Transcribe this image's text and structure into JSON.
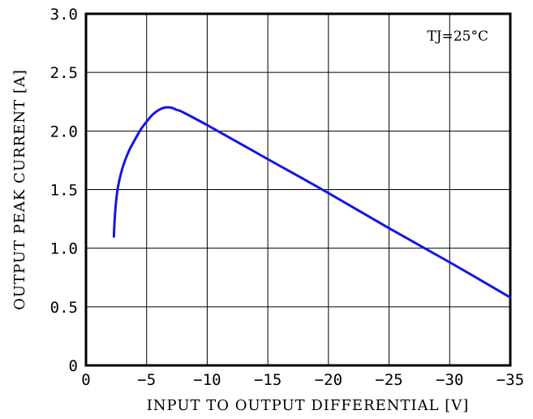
{
  "chart_data": {
    "type": "line",
    "title": "",
    "xlabel": "INPUT TO OUTPUT DIFFERENTIAL [V]",
    "ylabel": "OUTPUT PEAK CURRENT [A]",
    "annotation": "TJ=25°C",
    "xlim": [
      0,
      -35
    ],
    "ylim": [
      0,
      3.0
    ],
    "grid": true,
    "x_ticks": [
      0,
      -5,
      -10,
      -15,
      -20,
      -25,
      -30,
      -35
    ],
    "x_tick_labels": [
      "0",
      "−5",
      "−10",
      "−15",
      "−20",
      "−25",
      "−30",
      "−35"
    ],
    "y_ticks": [
      0,
      0.5,
      1.0,
      1.5,
      2.0,
      2.5,
      3.0
    ],
    "y_tick_labels": [
      "0",
      "0.5",
      "1.0",
      "1.5",
      "2.0",
      "2.5",
      "3.0"
    ],
    "series": [
      {
        "color": "#1414e6",
        "x": [
          -2.3,
          -2.4,
          -2.6,
          -3.0,
          -3.5,
          -4.0,
          -4.5,
          -5.0,
          -5.5,
          -6.0,
          -6.5,
          -7.0,
          -7.5,
          -8.0,
          -10,
          -15,
          -20,
          -25,
          -30,
          -35
        ],
        "y": [
          1.1,
          1.3,
          1.5,
          1.68,
          1.82,
          1.92,
          2.01,
          2.08,
          2.14,
          2.18,
          2.2,
          2.2,
          2.18,
          2.16,
          2.05,
          1.76,
          1.47,
          1.17,
          0.88,
          0.58
        ]
      }
    ]
  }
}
